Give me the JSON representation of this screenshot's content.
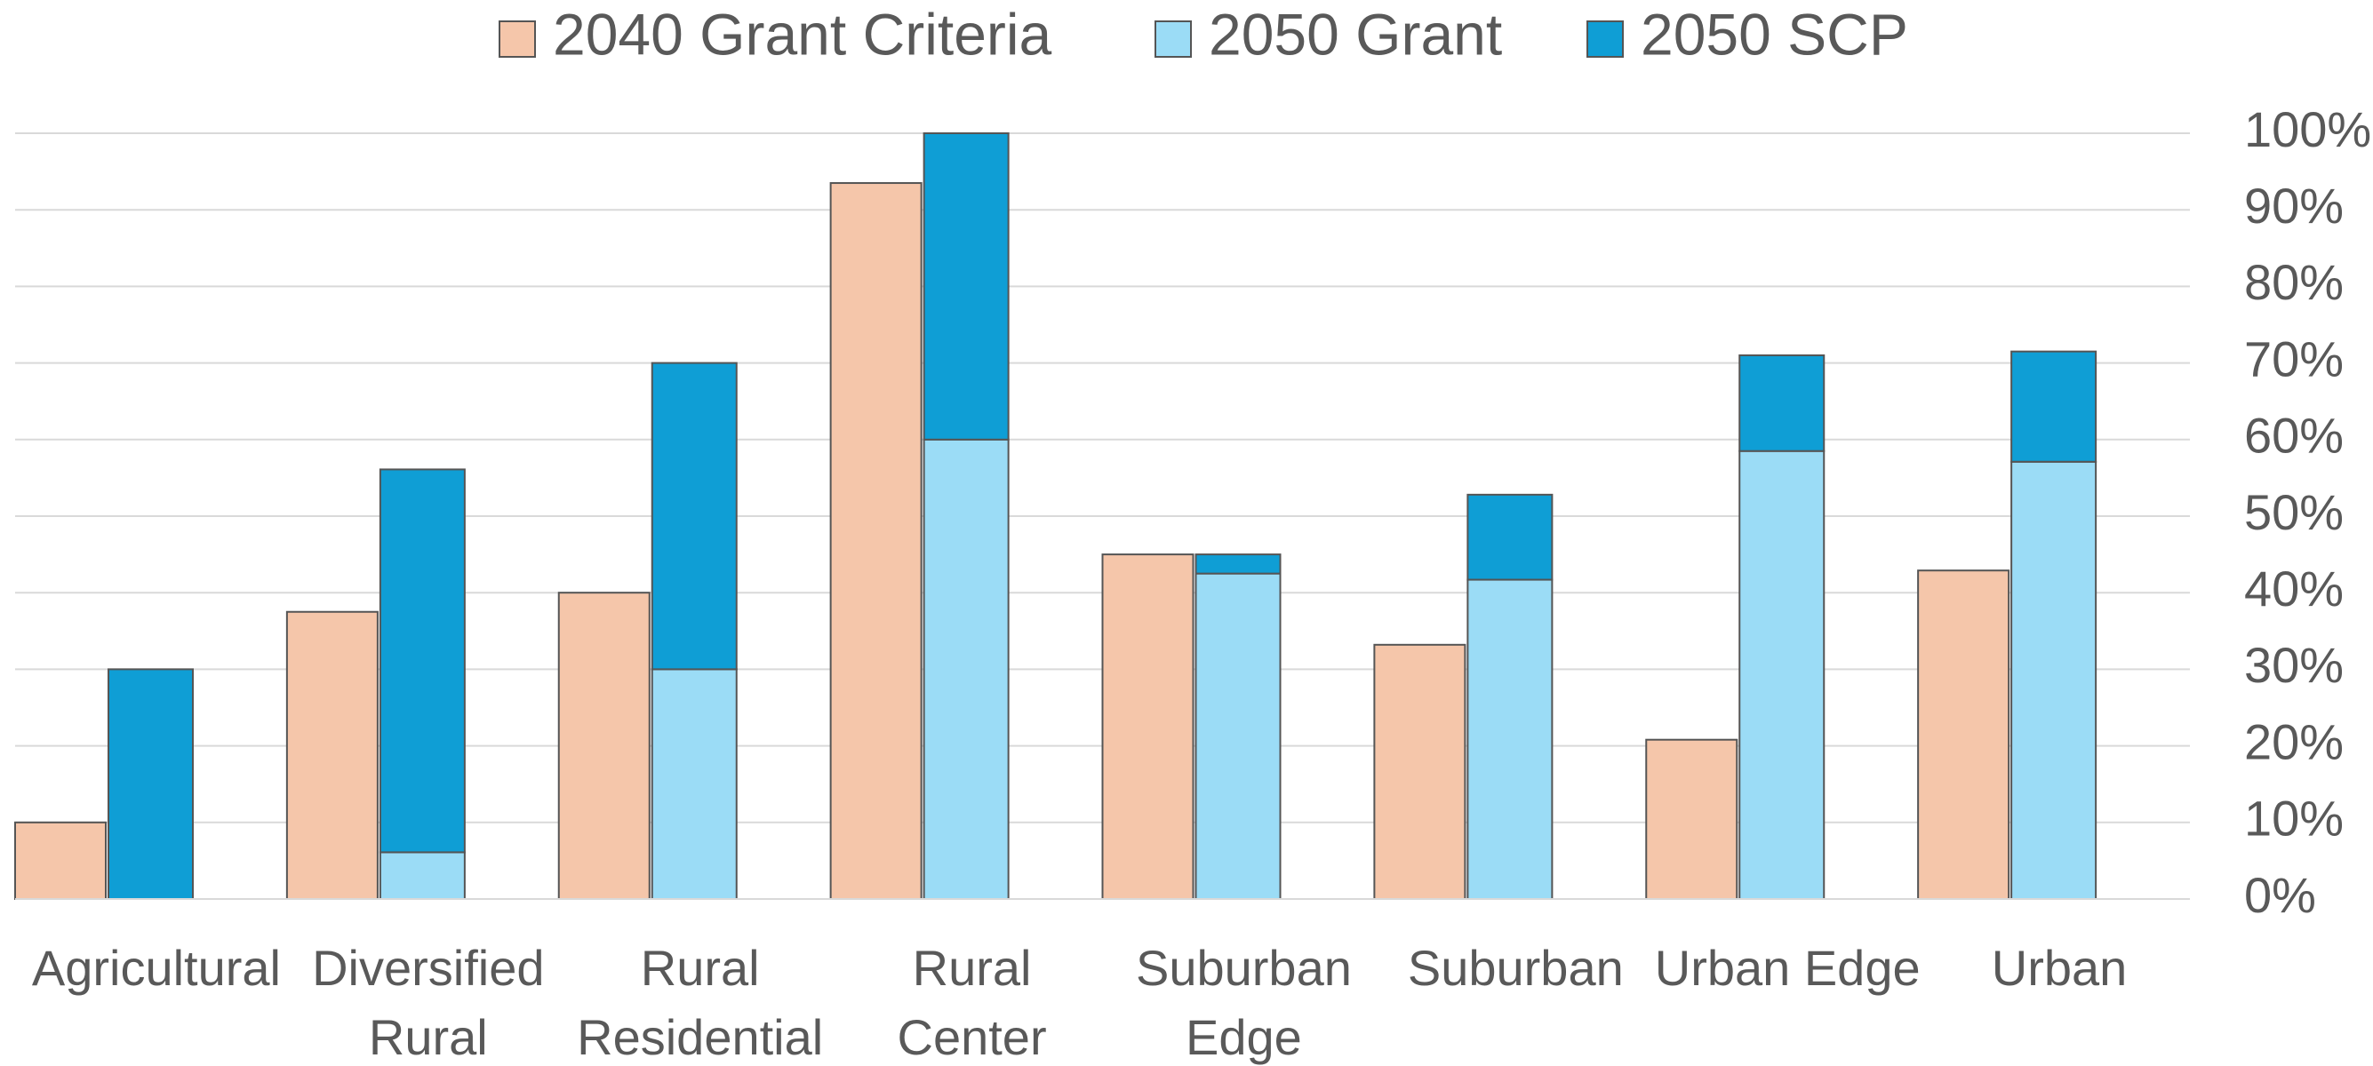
{
  "chart_data": {
    "type": "bar",
    "categories": [
      [
        "Agricultural"
      ],
      [
        "Diversified",
        "Rural"
      ],
      [
        "Rural",
        "Residential"
      ],
      [
        "Rural",
        "Center"
      ],
      [
        "Suburban",
        "Edge"
      ],
      [
        "Suburban"
      ],
      [
        "Urban Edge"
      ],
      [
        "Urban"
      ]
    ],
    "series": [
      {
        "name": "2040 Grant Criteria",
        "color": "#F5C6AA",
        "values": [
          10,
          37.5,
          40,
          93.5,
          45,
          33.2,
          20.8,
          42.9
        ]
      },
      {
        "name": "2050 Grant",
        "color": "#9BDCF6",
        "values": [
          0,
          6.1,
          30,
          60,
          42.5,
          41.7,
          58.5,
          57.1
        ],
        "stack": "2050"
      },
      {
        "name": "2050 SCP",
        "color": "#0F9ED5",
        "values": [
          30,
          50,
          40,
          40,
          2.5,
          11.1,
          12.5,
          14.4
        ],
        "stack": "2050"
      }
    ],
    "ylim": [
      0,
      100
    ],
    "yticks": [
      {
        "value": 0,
        "label": "0%"
      },
      {
        "value": 10,
        "label": "10%"
      },
      {
        "value": 20,
        "label": "20%"
      },
      {
        "value": 30,
        "label": "30%"
      },
      {
        "value": 40,
        "label": "40%"
      },
      {
        "value": 50,
        "label": "50%"
      },
      {
        "value": 60,
        "label": "60%"
      },
      {
        "value": 70,
        "label": "70%"
      },
      {
        "value": 80,
        "label": "80%"
      },
      {
        "value": 90,
        "label": "90%"
      },
      {
        "value": 100,
        "label": "100%"
      }
    ],
    "grid": true,
    "legend": "top",
    "y_axis_side": "right"
  }
}
